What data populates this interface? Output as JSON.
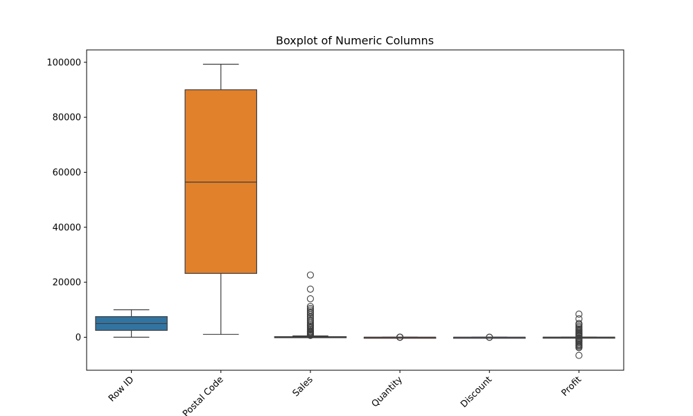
{
  "chart_data": {
    "type": "boxplot",
    "title": "Boxplot of Numeric Columns",
    "xlabel": "",
    "ylabel": "",
    "ylim": [
      -12000,
      104500
    ],
    "yticks": [
      0,
      20000,
      40000,
      60000,
      80000,
      100000
    ],
    "ytick_labels": [
      "0",
      "20000",
      "40000",
      "60000",
      "80000",
      "100000"
    ],
    "categories": [
      "Row ID",
      "Postal Code",
      "Sales",
      "Quantity",
      "Discount",
      "Profit"
    ],
    "boxes": [
      {
        "name": "Row ID",
        "color": "#3274a1",
        "whisker_low": 1,
        "q1": 2500,
        "median": 5000,
        "q3": 7500,
        "whisker_high": 9994,
        "outliers": []
      },
      {
        "name": "Postal Code",
        "color": "#e1812c",
        "whisker_low": 1040,
        "q1": 23223,
        "median": 56430,
        "q3": 90008,
        "whisker_high": 99301,
        "outliers": []
      },
      {
        "name": "Sales",
        "color": "#3a923a",
        "whisker_low": 0,
        "q1": 17,
        "median": 54,
        "q3": 210,
        "whisker_high": 500,
        "outliers": [
          22638,
          17500,
          14000,
          11200,
          10500,
          9900,
          9300,
          8800,
          8200,
          7500,
          6900,
          6300,
          5800,
          5200,
          4700,
          4200,
          3800,
          3400,
          3000,
          2600,
          2200,
          1900,
          1600,
          1300,
          1000,
          800,
          650
        ]
      },
      {
        "name": "Quantity",
        "color": "#c03d3e",
        "whisker_low": 1,
        "q1": 2,
        "median": 3,
        "q3": 5,
        "whisker_high": 9,
        "outliers": [
          10,
          11,
          12,
          13,
          14
        ]
      },
      {
        "name": "Discount",
        "color": "#9372b2",
        "whisker_low": 0,
        "q1": 0,
        "median": 0.2,
        "q3": 0.2,
        "whisker_high": 0.5,
        "outliers": [
          0.6,
          0.7,
          0.8
        ]
      },
      {
        "name": "Profit",
        "color": "#845b53",
        "whisker_low": -40,
        "q1": 2,
        "median": 9,
        "q3": 29,
        "whisker_high": 70,
        "outliers": [
          8400,
          6700,
          5000,
          4600,
          4000,
          3500,
          3000,
          2600,
          2200,
          1800,
          1500,
          1200,
          900,
          600,
          300,
          -300,
          -600,
          -900,
          -1200,
          -1500,
          -1900,
          -2300,
          -2700,
          -3000,
          -3400,
          -3800,
          -6600
        ]
      }
    ]
  }
}
